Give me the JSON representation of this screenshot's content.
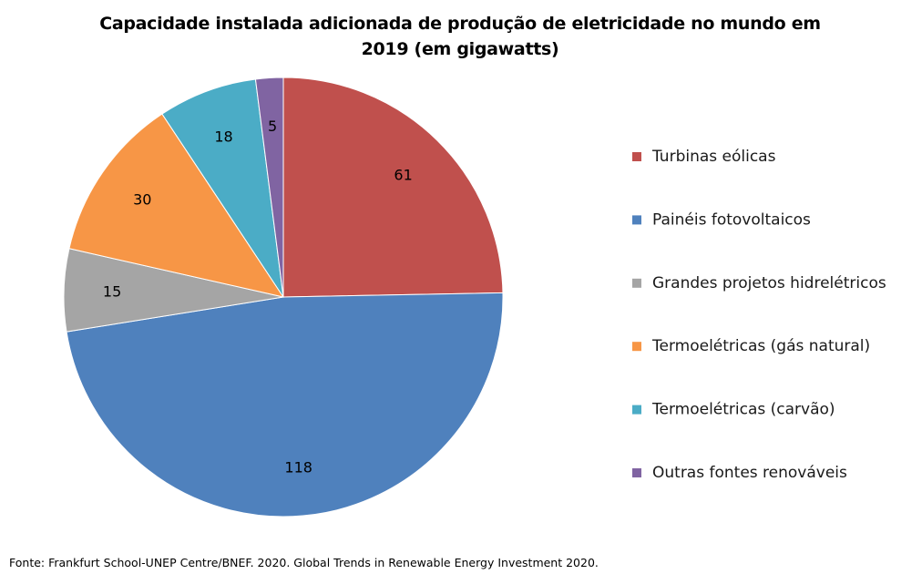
{
  "chart_data": {
    "type": "pie",
    "title": "Capacidade instalada adicionada de produção de eletricidade no mundo em 2019 (em gigawatts)",
    "categories": [
      "Turbinas eólicas",
      "Painéis fotovoltaicos",
      "Grandes projetos hidrelétricos",
      "Termoelétricas (gás natural)",
      "Termoelétricas (carvão)",
      "Outras fontes renováveis"
    ],
    "values": [
      61,
      118,
      15,
      30,
      18,
      5
    ],
    "data_labels": [
      "61",
      "118",
      "15",
      "30",
      "18",
      "5"
    ],
    "colors": [
      "#C0504D",
      "#4F81BD",
      "#A5A5A5",
      "#F79646",
      "#4BACC6",
      "#8064A2"
    ],
    "legend": "right",
    "start_angle": "12 o'clock",
    "direction": "clockwise"
  },
  "source_note": "Fonte: Frankfurt  School-UNEP Centre/BNEF. 2020. Global Trends in Renewable Energy Investment 2020."
}
